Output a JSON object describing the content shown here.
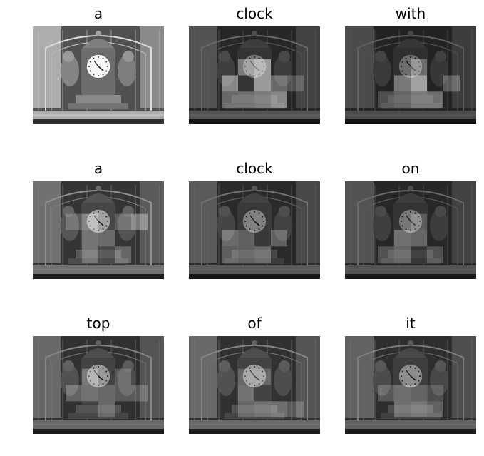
{
  "panels": [
    {
      "word": "a",
      "base_brightness": 1.15,
      "highlight_cells": []
    },
    {
      "word": "clock",
      "base_brightness": 0.55,
      "highlight_cells": [
        [
          1,
          2,
          0.45
        ],
        [
          1,
          3,
          0.3
        ],
        [
          2,
          3,
          0.3
        ],
        [
          3,
          1,
          0.5
        ],
        [
          3,
          3,
          0.35
        ],
        [
          2,
          1,
          0.35
        ],
        [
          3,
          2,
          0.5
        ],
        [
          4,
          3,
          0.45
        ],
        [
          4,
          2,
          0.3
        ],
        [
          5,
          2,
          0.2
        ]
      ]
    },
    {
      "word": "with",
      "base_brightness": 0.5,
      "highlight_cells": [
        [
          2,
          2,
          0.35
        ],
        [
          3,
          2,
          0.55
        ],
        [
          3,
          3,
          0.35
        ],
        [
          2,
          3,
          0.25
        ],
        [
          1,
          3,
          0.2
        ],
        [
          4,
          3,
          0.35
        ],
        [
          3,
          1,
          0.3
        ],
        [
          5,
          2,
          0.25
        ]
      ]
    },
    {
      "word": "a",
      "base_brightness": 0.75,
      "highlight_cells": [
        [
          2,
          1,
          0.35
        ],
        [
          2,
          2,
          0.25
        ],
        [
          4,
          1,
          0.2
        ],
        [
          5,
          1,
          0.35
        ],
        [
          4,
          3,
          0.25
        ],
        [
          2,
          3,
          0.25
        ],
        [
          1,
          1,
          0.2
        ],
        [
          3,
          2,
          0.2
        ]
      ]
    },
    {
      "word": "clock",
      "base_brightness": 0.6,
      "highlight_cells": [
        [
          2,
          2,
          0.2
        ],
        [
          1,
          2,
          0.3
        ],
        [
          1,
          3,
          0.25
        ],
        [
          3,
          3,
          0.25
        ],
        [
          2,
          3,
          0.2
        ],
        [
          4,
          2,
          0.25
        ]
      ]
    },
    {
      "word": "on",
      "base_brightness": 0.55,
      "highlight_cells": [
        [
          2,
          2,
          0.3
        ],
        [
          3,
          2,
          0.25
        ],
        [
          1,
          3,
          0.2
        ],
        [
          2,
          3,
          0.25
        ],
        [
          3,
          1,
          0.2
        ],
        [
          4,
          3,
          0.2
        ]
      ]
    },
    {
      "word": "top",
      "base_brightness": 0.7,
      "highlight_cells": [
        [
          2,
          1,
          0.3
        ],
        [
          2,
          2,
          0.25
        ],
        [
          1,
          2,
          0.25
        ],
        [
          3,
          2,
          0.2
        ],
        [
          4,
          1,
          0.2
        ],
        [
          4,
          2,
          0.2
        ],
        [
          5,
          2,
          0.2
        ],
        [
          3,
          3,
          0.2
        ]
      ]
    },
    {
      "word": "of",
      "base_brightness": 0.7,
      "highlight_cells": [
        [
          2,
          2,
          0.25
        ],
        [
          2,
          3,
          0.2
        ],
        [
          3,
          3,
          0.25
        ],
        [
          4,
          3,
          0.3
        ],
        [
          5,
          3,
          0.2
        ],
        [
          2,
          1,
          0.2
        ],
        [
          3,
          1,
          0.2
        ]
      ]
    },
    {
      "word": "it",
      "base_brightness": 0.65,
      "highlight_cells": [
        [
          1,
          2,
          0.2
        ],
        [
          2,
          2,
          0.25
        ],
        [
          3,
          3,
          0.3
        ],
        [
          2,
          3,
          0.25
        ],
        [
          4,
          3,
          0.25
        ],
        [
          3,
          2,
          0.2
        ],
        [
          4,
          2,
          0.15
        ]
      ]
    }
  ],
  "colors": {
    "background": "#ffffff",
    "title_text": "#000000"
  }
}
